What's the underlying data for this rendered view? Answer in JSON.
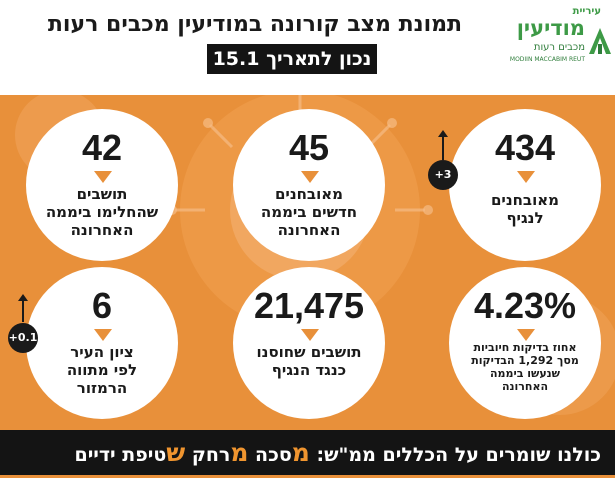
{
  "header": {
    "title": "תמונת מצב קורונה במודיעין מכבים רעות",
    "date": "נכון לתאריך 15.1"
  },
  "logo": {
    "small": "עיריית",
    "name": "מודיעין",
    "sub": "מכבים רעות",
    "en": "MODIIN MACCABIM REUT"
  },
  "stats": {
    "confirmed": {
      "value": "434",
      "line1": "מאובחנים",
      "line2": "לנגיף",
      "badge": "+3"
    },
    "new_confirmed": {
      "value": "45",
      "line1": "מאובחנים",
      "line2": "חדשים ביממה",
      "line3": "האחרונה"
    },
    "recovered": {
      "value": "42",
      "line1": "תושבים",
      "line2": "שהחלימו ביממה",
      "line3": "האחרונה"
    },
    "positive_pct": {
      "value": "4.23%",
      "line1": "אחוז בדיקות חיוביות",
      "line2": "מסך 1,292 הבדיקות",
      "line3": "שנעשו ביממה",
      "line4": "האחרונה"
    },
    "vaccinated": {
      "value": "21,475",
      "line1": "תושבים שחוסנו",
      "line2": "כנגד הנגיף"
    },
    "city_score": {
      "value": "6",
      "line1": "ציון העיר",
      "line2": "לפי מתווה",
      "line3": "הרמזור",
      "badge": "+0.1"
    }
  },
  "footer": {
    "prefix": "כולנו שומרים על הכללים ממ\"ש:",
    "m1": "מ",
    "w1": "סכה",
    "m2": "מ",
    "w2": "רחק",
    "m3": "ש",
    "w3": "טיפת ידיים"
  },
  "colors": {
    "background": "#e8903a",
    "accent": "#f0952f",
    "dark": "#141414",
    "logo_green": "#3d9a46"
  }
}
